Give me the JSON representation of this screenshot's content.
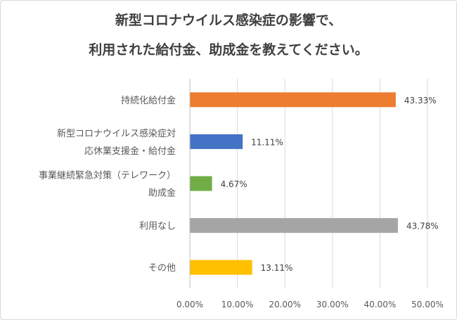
{
  "chart_data": {
    "type": "bar",
    "orientation": "horizontal",
    "title_lines": [
      "新型コロナウイルス感染症の影響で、",
      "利用された給付金、助成金を教えてください。"
    ],
    "categories": [
      [
        "持続化給付金"
      ],
      [
        "新型コロナウイルス感染症対",
        "応休業支援金・給付金"
      ],
      [
        "事業継続緊急対策（テレワーク）",
        "助成金"
      ],
      [
        "利用なし"
      ],
      [
        "その他"
      ]
    ],
    "values": [
      43.33,
      11.11,
      4.67,
      43.78,
      13.11
    ],
    "value_labels": [
      "43.33%",
      "11.11%",
      "4.67%",
      "43.78%",
      "13.11%"
    ],
    "bar_colors": [
      "#ED7D31",
      "#4472C4",
      "#70AD47",
      "#A5A5A5",
      "#FFC000"
    ],
    "x_ticks": [
      "0.00%",
      "10.00%",
      "20.00%",
      "30.00%",
      "40.00%",
      "50.00%"
    ],
    "xlim": [
      0,
      50
    ],
    "grid": true,
    "legend": "none"
  }
}
